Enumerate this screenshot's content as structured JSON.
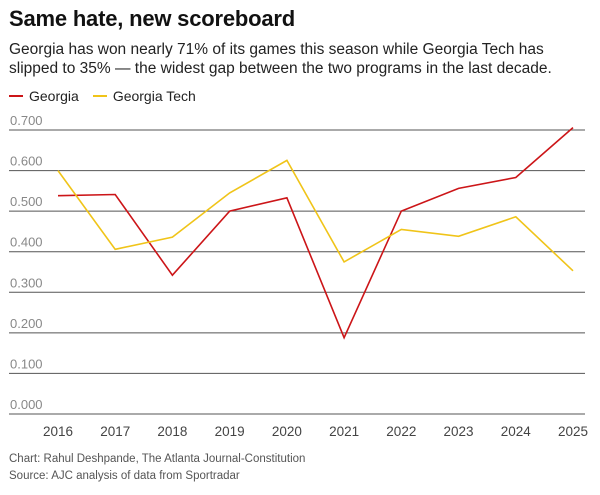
{
  "title": "Same hate, new scoreboard",
  "subtitle": "Georgia has won nearly 71% of its games this season while Georgia Tech has slipped to 35% — the widest gap between the two programs in the last decade.",
  "credit": "Chart: Rahul Deshpande, The Atlanta Journal-Constitution",
  "source": "Source: AJC analysis of data from Sportradar",
  "colors": {
    "georgia": "#cc1518",
    "georgia_tech": "#f0c419",
    "grid": "#555555",
    "tick": "#888888"
  },
  "chart_data": {
    "type": "line",
    "title": "Same hate, new scoreboard",
    "xlabel": "",
    "ylabel": "",
    "categories": [
      "2016",
      "2017",
      "2018",
      "2019",
      "2020",
      "2021",
      "2022",
      "2023",
      "2024",
      "2025"
    ],
    "yticks": [
      "0.000",
      "0.100",
      "0.200",
      "0.300",
      "0.400",
      "0.500",
      "0.600",
      "0.700"
    ],
    "ylim": [
      0,
      0.7
    ],
    "legend_position": "top-left",
    "series": [
      {
        "name": "Georgia",
        "color": "#cc1518",
        "values": [
          0.538,
          0.541,
          0.342,
          0.5,
          0.533,
          0.188,
          0.5,
          0.556,
          0.583,
          0.706
        ]
      },
      {
        "name": "Georgia Tech",
        "color": "#f0c419",
        "values": [
          0.6,
          0.406,
          0.436,
          0.545,
          0.625,
          0.375,
          0.455,
          0.438,
          0.486,
          0.353
        ]
      }
    ]
  }
}
